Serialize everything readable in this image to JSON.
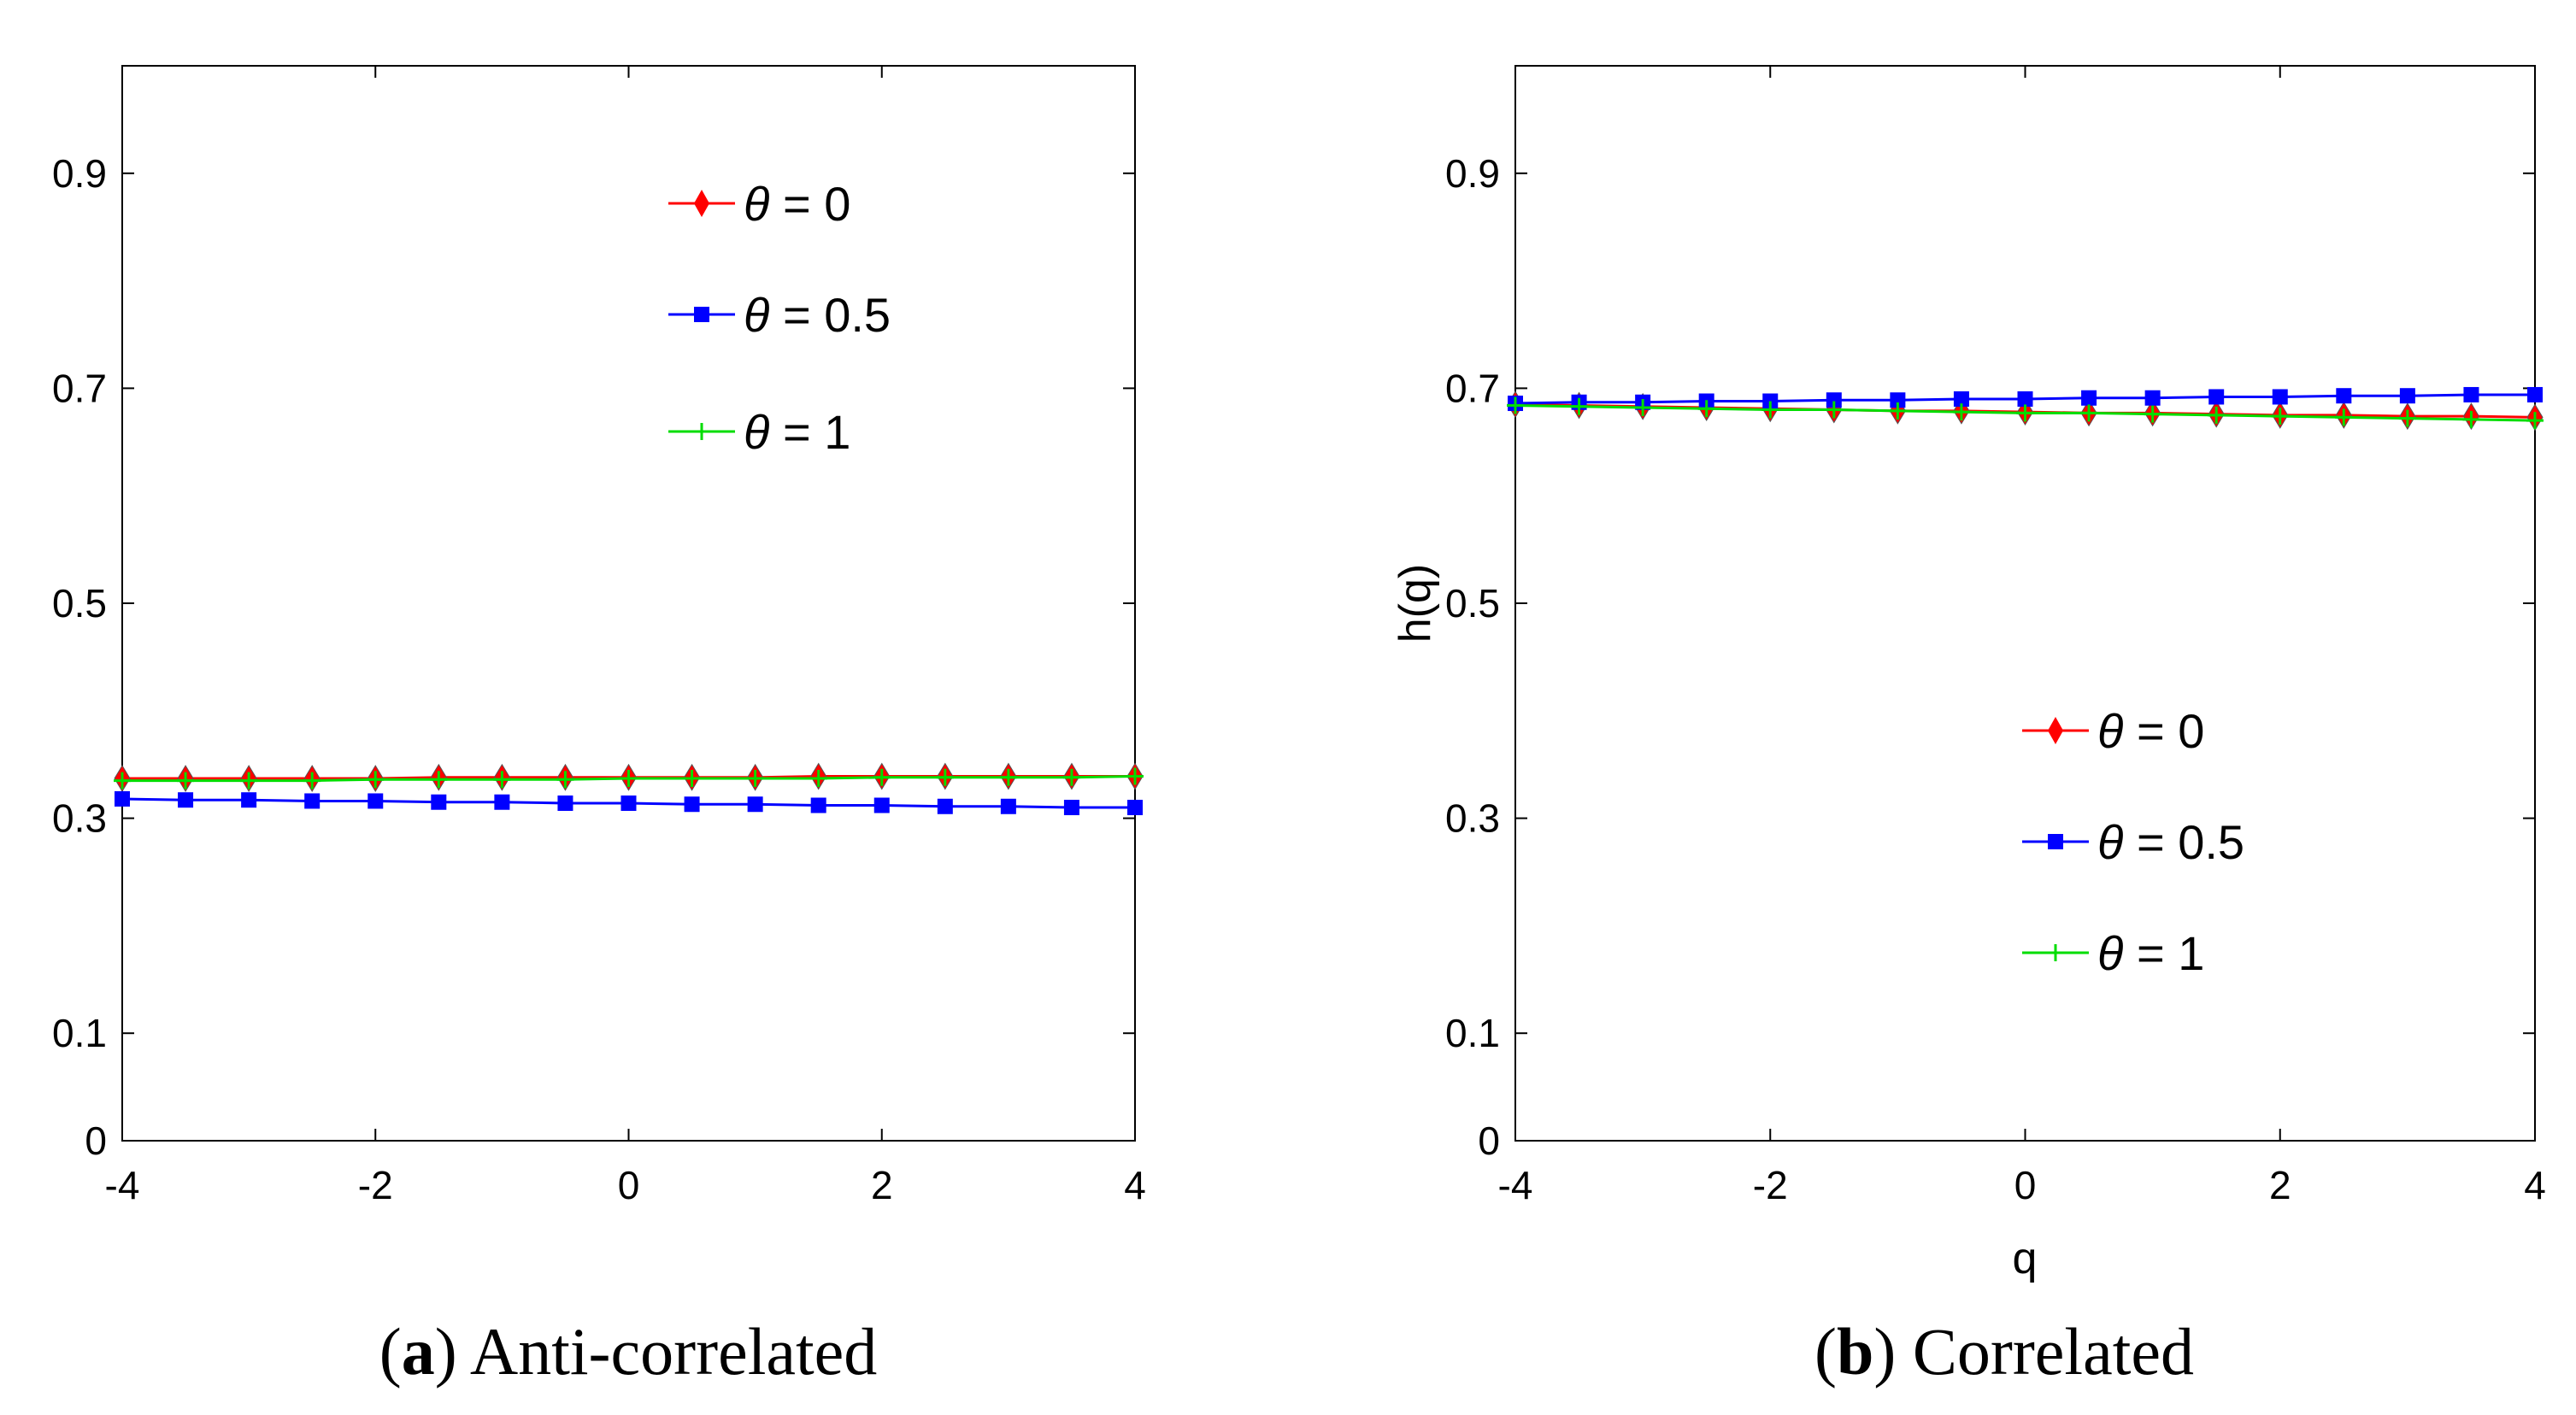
{
  "chart_data": [
    {
      "type": "line",
      "panel": "a",
      "caption_letter": "a",
      "caption_text": "Anti-correlated",
      "xlabel": "",
      "ylabel": "",
      "xlim": [
        -4,
        4
      ],
      "ylim": [
        0,
        1
      ],
      "xticks": [
        "-4",
        "-2",
        "0",
        "2",
        "4"
      ],
      "yticks": [
        "0",
        "0.1",
        "0.3",
        "0.5",
        "0.7",
        "0.9"
      ],
      "legend_position": "top-right",
      "x": [
        -4,
        -3.5,
        -3,
        -2.5,
        -2,
        -1.5,
        -1,
        -0.5,
        0,
        0.5,
        1,
        1.5,
        2,
        2.5,
        3,
        3.5,
        4
      ],
      "series": [
        {
          "name": "θ = 0",
          "symbol": "θ",
          "value_label": " = 0",
          "color": "#ff0000",
          "marker": "diamond",
          "values": [
            0.337,
            0.337,
            0.337,
            0.337,
            0.337,
            0.338,
            0.338,
            0.338,
            0.338,
            0.338,
            0.338,
            0.339,
            0.339,
            0.339,
            0.339,
            0.339,
            0.339
          ]
        },
        {
          "name": "θ = 0.5",
          "symbol": "θ",
          "value_label": " = 0.5",
          "color": "#0000ff",
          "marker": "square",
          "values": [
            0.318,
            0.317,
            0.317,
            0.316,
            0.316,
            0.315,
            0.315,
            0.314,
            0.314,
            0.313,
            0.313,
            0.312,
            0.312,
            0.311,
            0.311,
            0.31,
            0.31
          ]
        },
        {
          "name": "θ = 1",
          "symbol": "θ",
          "value_label": " = 1",
          "color": "#00dd00",
          "marker": "plus",
          "values": [
            0.335,
            0.335,
            0.335,
            0.335,
            0.336,
            0.336,
            0.336,
            0.336,
            0.337,
            0.337,
            0.337,
            0.337,
            0.338,
            0.338,
            0.338,
            0.338,
            0.339
          ]
        }
      ]
    },
    {
      "type": "line",
      "panel": "b",
      "caption_letter": "b",
      "caption_text": "Correlated",
      "xlabel": "q",
      "ylabel": "h(q)",
      "xlim": [
        -4,
        4
      ],
      "ylim": [
        0,
        1
      ],
      "xticks": [
        "-4",
        "-2",
        "0",
        "2",
        "4"
      ],
      "yticks": [
        "0",
        "0.1",
        "0.3",
        "0.5",
        "0.7",
        "0.9"
      ],
      "legend_position": "center-right",
      "x": [
        -4,
        -3.5,
        -3,
        -2.5,
        -2,
        -1.5,
        -1,
        -0.5,
        0,
        0.5,
        1,
        1.5,
        2,
        2.5,
        3,
        3.5,
        4
      ],
      "series": [
        {
          "name": "θ = 0",
          "symbol": "θ",
          "value_label": " = 0",
          "color": "#ff0000",
          "marker": "diamond",
          "values": [
            0.685,
            0.684,
            0.683,
            0.682,
            0.681,
            0.68,
            0.679,
            0.679,
            0.678,
            0.677,
            0.677,
            0.676,
            0.675,
            0.675,
            0.674,
            0.674,
            0.673
          ]
        },
        {
          "name": "θ = 0.5",
          "symbol": "θ",
          "value_label": " = 0.5",
          "color": "#0000ff",
          "marker": "square",
          "values": [
            0.686,
            0.687,
            0.687,
            0.688,
            0.688,
            0.689,
            0.689,
            0.69,
            0.69,
            0.691,
            0.691,
            0.692,
            0.692,
            0.693,
            0.693,
            0.694,
            0.694
          ]
        },
        {
          "name": "θ = 1",
          "symbol": "θ",
          "value_label": " = 1",
          "color": "#00dd00",
          "marker": "plus",
          "values": [
            0.684,
            0.683,
            0.682,
            0.681,
            0.68,
            0.68,
            0.679,
            0.678,
            0.677,
            0.677,
            0.676,
            0.675,
            0.674,
            0.673,
            0.672,
            0.671,
            0.67
          ]
        }
      ]
    }
  ]
}
